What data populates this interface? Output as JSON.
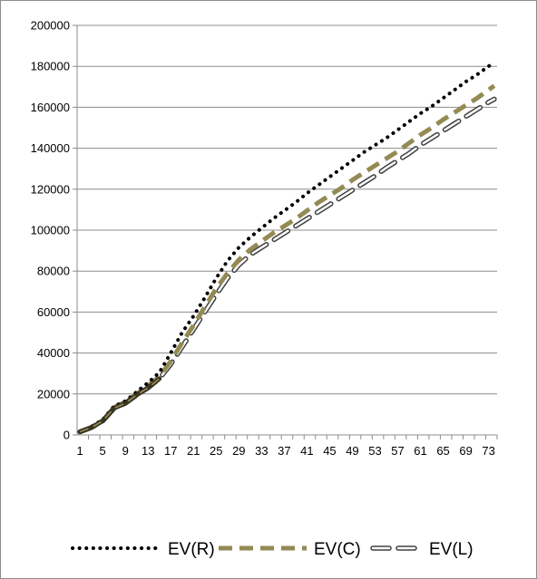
{
  "chart_data": {
    "type": "line",
    "title": "",
    "xlabel": "",
    "ylabel": "",
    "ylim": [
      0,
      200000
    ],
    "yticks": [
      0,
      20000,
      40000,
      60000,
      80000,
      100000,
      120000,
      140000,
      160000,
      180000,
      200000
    ],
    "xlim": [
      1,
      74
    ],
    "xticks": [
      1,
      5,
      9,
      13,
      17,
      21,
      25,
      29,
      33,
      37,
      41,
      45,
      49,
      53,
      57,
      61,
      65,
      69,
      73
    ],
    "grid": true,
    "legend": "bottom",
    "series": [
      {
        "name": "EV(R)",
        "color": "#000000",
        "style": "dotted",
        "x": [
          1,
          3,
          5,
          7,
          9,
          11,
          13,
          15,
          17,
          19,
          21,
          23,
          25,
          27,
          29,
          31,
          33,
          35,
          37,
          39,
          41,
          43,
          45,
          47,
          49,
          51,
          53,
          55,
          57,
          59,
          61,
          63,
          65,
          67,
          69,
          71,
          73,
          74
        ],
        "y": [
          1500,
          4000,
          7500,
          14000,
          16500,
          21000,
          25500,
          30500,
          40000,
          50000,
          58000,
          67000,
          76500,
          85000,
          91500,
          96500,
          101000,
          105500,
          109500,
          113500,
          118000,
          122000,
          126000,
          130000,
          134000,
          138000,
          141500,
          145000,
          149000,
          153000,
          157000,
          160500,
          164500,
          168500,
          172500,
          176000,
          180000,
          182000
        ]
      },
      {
        "name": "EV(C)",
        "color": "#948a54",
        "style": "dashed",
        "x": [
          1,
          3,
          5,
          7,
          9,
          11,
          13,
          15,
          17,
          19,
          21,
          23,
          25,
          27,
          29,
          31,
          33,
          35,
          37,
          39,
          41,
          43,
          45,
          47,
          49,
          51,
          53,
          55,
          57,
          59,
          61,
          63,
          65,
          67,
          69,
          71,
          73,
          74
        ],
        "y": [
          1500,
          3800,
          7000,
          13500,
          16000,
          20000,
          24000,
          28500,
          36000,
          45000,
          53500,
          62500,
          71500,
          79000,
          85500,
          90500,
          94500,
          98500,
          102000,
          105500,
          109500,
          113500,
          117000,
          120500,
          124500,
          128000,
          131500,
          135000,
          138500,
          142500,
          146500,
          150000,
          154000,
          157500,
          161000,
          164500,
          168500,
          170500
        ]
      },
      {
        "name": "EV(L)",
        "color": "#404040",
        "style": "hollow-dash",
        "x": [
          1,
          3,
          5,
          7,
          9,
          11,
          13,
          15,
          17,
          19,
          21,
          23,
          25,
          27,
          29,
          31,
          33,
          35,
          37,
          39,
          41,
          43,
          45,
          47,
          49,
          51,
          53,
          55,
          57,
          59,
          61,
          63,
          65,
          67,
          69,
          71,
          73,
          74
        ],
        "y": [
          1500,
          3600,
          6800,
          13000,
          15500,
          19500,
          23000,
          27500,
          34500,
          43000,
          51500,
          60000,
          68500,
          76500,
          83000,
          88000,
          91500,
          95000,
          98500,
          102000,
          105500,
          109000,
          112500,
          116000,
          119500,
          123000,
          126500,
          130500,
          134000,
          137500,
          141500,
          145000,
          148500,
          152000,
          155500,
          159000,
          162500,
          164000
        ]
      }
    ]
  }
}
